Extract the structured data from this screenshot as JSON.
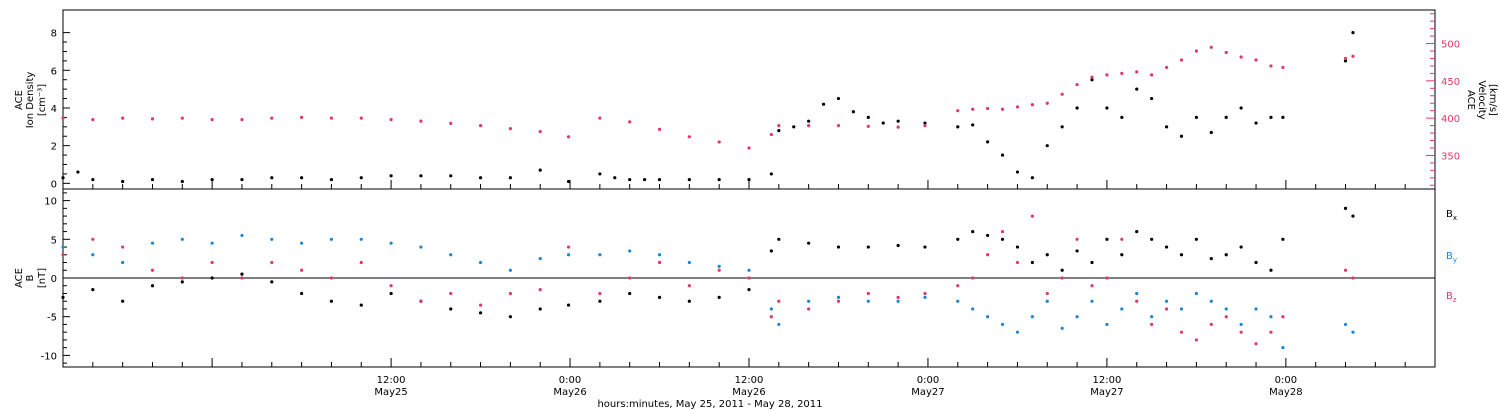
{
  "colors": {
    "black": "#000000",
    "pink": "#e0386a",
    "blue": "#1a86d8"
  },
  "x_axis": {
    "title": "hours:minutes, May 25, 2011 - May 28, 2011",
    "ticks": [
      {
        "h": 12,
        "time": "12:00",
        "day": "May25"
      },
      {
        "h": 24,
        "time": "0:00",
        "day": "May26"
      },
      {
        "h": 36,
        "time": "12:00",
        "day": "May26"
      },
      {
        "h": 48,
        "time": "0:00",
        "day": "May27"
      },
      {
        "h": 60,
        "time": "12:00",
        "day": "May27"
      },
      {
        "h": 72,
        "time": "0:00",
        "day": "May28"
      }
    ],
    "range_hours": [
      -10,
      82
    ]
  },
  "chart_data": [
    {
      "type": "scatter",
      "ylabel_left": [
        "ACE",
        "Ion Density"
      ],
      "ylabel_left_unit": "[cm⁻³]",
      "ylabel_right": [
        "ACE",
        "Velocity"
      ],
      "ylabel_right_unit": "[km/s]",
      "ylim_left": [
        -0.3,
        9.2
      ],
      "yticks_left": [
        "0",
        "2",
        "4",
        "6",
        "8"
      ],
      "ylim_right": [
        305,
        545
      ],
      "yticks_right": [
        "350",
        "400",
        "450",
        "500"
      ],
      "series": [
        {
          "color": "black",
          "axis": "left",
          "x": [
            -10,
            -9,
            -8,
            -6,
            -4,
            -2,
            0,
            2,
            4,
            6,
            8,
            10,
            12,
            14,
            16,
            18,
            20,
            22,
            23.9,
            26,
            27,
            28,
            29,
            30,
            32,
            34,
            36,
            37.5,
            38,
            39,
            40,
            41,
            42,
            43,
            44,
            45,
            46,
            47.8,
            50,
            51,
            52,
            53,
            54,
            55,
            56,
            57,
            58,
            59,
            60,
            61,
            62,
            63,
            64,
            65,
            66,
            67,
            68,
            69,
            70,
            71,
            71.8,
            76,
            76.5
          ],
          "y": [
            0.3,
            0.6,
            0.2,
            0.1,
            0.2,
            0.1,
            0.2,
            0.2,
            0.3,
            0.3,
            0.2,
            0.3,
            0.4,
            0.4,
            0.4,
            0.3,
            0.3,
            0.7,
            0.1,
            0.5,
            0.3,
            0.2,
            0.2,
            0.2,
            0.2,
            0.2,
            0.2,
            0.5,
            2.8,
            3.0,
            3.3,
            4.2,
            4.5,
            3.8,
            3.5,
            3.2,
            3.3,
            3.2,
            3.0,
            3.1,
            2.2,
            1.5,
            0.6,
            0.3,
            2.0,
            3.0,
            4.0,
            5.5,
            4.0,
            3.5,
            5.0,
            4.5,
            3.0,
            2.5,
            3.5,
            2.7,
            3.5,
            4.0,
            3.2,
            3.5,
            3.5,
            6.5,
            8.0
          ]
        },
        {
          "color": "pink",
          "axis": "right",
          "x": [
            -10,
            -8,
            -6,
            -4,
            -2,
            0,
            2,
            4,
            6,
            8,
            10,
            12,
            14,
            16,
            18,
            20,
            22,
            23.9,
            26,
            28,
            30,
            32,
            34,
            36,
            37.5,
            38,
            40,
            42,
            44,
            46,
            47.8,
            50,
            51,
            52,
            53,
            54,
            55,
            56,
            57,
            58,
            59,
            60,
            61,
            62,
            63,
            64,
            65,
            66,
            67,
            68,
            69,
            70,
            71,
            71.8,
            76,
            76.5
          ],
          "y": [
            400,
            398,
            400,
            399,
            400,
            398,
            398,
            400,
            401,
            400,
            400,
            398,
            396,
            393,
            390,
            386,
            382,
            375,
            400,
            395,
            385,
            375,
            368,
            360,
            378,
            390,
            390,
            390,
            389,
            388,
            390,
            410,
            412,
            413,
            412,
            415,
            418,
            420,
            432,
            445,
            455,
            458,
            460,
            462,
            458,
            468,
            478,
            490,
            495,
            488,
            482,
            478,
            470,
            468,
            480,
            483
          ]
        }
      ]
    },
    {
      "type": "scatter",
      "ylabel": [
        "ACE",
        "B"
      ],
      "ylabel_unit": "[nT]",
      "ylim": [
        -11.5,
        11.5
      ],
      "yticks": [
        "-10",
        "-5",
        "0",
        "5",
        "10"
      ],
      "zero_line": true,
      "legend": [
        "Bₓ",
        "Bᵧ",
        "B_z"
      ],
      "legend_labels": [
        {
          "base": "B",
          "sub": "x",
          "color": "black"
        },
        {
          "base": "B",
          "sub": "y",
          "color": "blue"
        },
        {
          "base": "B",
          "sub": "z",
          "color": "pink"
        }
      ],
      "series": [
        {
          "color": "black",
          "x": [
            -10,
            -8,
            -6,
            -4,
            -2,
            0,
            2,
            4,
            6,
            8,
            10,
            12,
            14,
            16,
            18,
            20,
            22,
            23.9,
            26,
            28,
            30,
            32,
            34,
            36,
            37.5,
            38,
            40,
            42,
            44,
            46,
            47.8,
            50,
            51,
            52,
            53,
            54,
            55,
            56,
            57,
            58,
            59,
            60,
            61,
            62,
            63,
            64,
            65,
            66,
            67,
            68,
            69,
            70,
            71,
            71.8,
            76,
            76.5
          ],
          "y": [
            -2.5,
            -1.5,
            -3.0,
            -1.0,
            -0.5,
            0.0,
            0.5,
            -0.5,
            -2.0,
            -3.0,
            -3.5,
            -2.0,
            -3.0,
            -4.0,
            -4.5,
            -5.0,
            -4.0,
            -3.5,
            -3.0,
            -2.0,
            -2.5,
            -3.0,
            -2.5,
            -1.5,
            3.5,
            5.0,
            4.5,
            4.0,
            4.0,
            4.2,
            4.0,
            5.0,
            6.0,
            5.5,
            5.0,
            4.0,
            2.0,
            3.0,
            1.0,
            3.5,
            2.0,
            5.0,
            3.0,
            6.0,
            5.0,
            4.0,
            3.0,
            5.0,
            2.5,
            3.0,
            4.0,
            2.0,
            1.0,
            5.0,
            9.0,
            8.0
          ]
        },
        {
          "color": "blue",
          "x": [
            -10,
            -8,
            -6,
            -4,
            -2,
            0,
            2,
            4,
            6,
            8,
            10,
            12,
            14,
            16,
            18,
            20,
            22,
            23.9,
            26,
            28,
            30,
            32,
            34,
            36,
            37.5,
            38,
            40,
            42,
            44,
            46,
            47.8,
            50,
            51,
            52,
            53,
            54,
            55,
            56,
            57,
            58,
            59,
            60,
            61,
            62,
            63,
            64,
            65,
            66,
            67,
            68,
            69,
            70,
            71,
            71.8,
            76,
            76.5
          ],
          "y": [
            4.0,
            3.0,
            2.0,
            4.5,
            5.0,
            4.5,
            5.5,
            5.0,
            4.5,
            5.0,
            5.0,
            4.5,
            4.0,
            3.0,
            2.0,
            1.0,
            2.5,
            3.0,
            3.0,
            3.5,
            3.0,
            2.0,
            1.5,
            1.0,
            -4.0,
            -6.0,
            -3.0,
            -2.5,
            -3.0,
            -3.0,
            -2.5,
            -3.0,
            -4.0,
            -5.0,
            -6.0,
            -7.0,
            -5.0,
            -3.0,
            -6.5,
            -5.0,
            -3.0,
            -6.0,
            -4.0,
            -2.0,
            -5.0,
            -3.0,
            -4.0,
            -2.0,
            -3.0,
            -4.0,
            -6.0,
            -4.0,
            -5.0,
            -9.0,
            -6.0,
            -7.0
          ]
        },
        {
          "color": "pink",
          "x": [
            -10,
            -8,
            -6,
            -4,
            -2,
            0,
            2,
            4,
            6,
            8,
            10,
            12,
            14,
            16,
            18,
            20,
            22,
            23.9,
            26,
            28,
            30,
            32,
            34,
            36,
            37.5,
            38,
            40,
            42,
            44,
            46,
            47.8,
            50,
            51,
            52,
            53,
            54,
            55,
            56,
            57,
            58,
            59,
            60,
            61,
            62,
            63,
            64,
            65,
            66,
            67,
            68,
            69,
            70,
            71,
            71.8,
            76,
            76.5
          ],
          "y": [
            3.0,
            5.0,
            4.0,
            1.0,
            0.0,
            2.0,
            0.0,
            2.0,
            1.0,
            0.0,
            2.0,
            -1.0,
            -3.0,
            -2.0,
            -3.5,
            -2.0,
            -1.5,
            4.0,
            -2.0,
            0.0,
            2.0,
            -1.0,
            1.0,
            0.0,
            -5.0,
            -3.0,
            -4.0,
            -3.0,
            -2.0,
            -2.5,
            -2.0,
            -1.0,
            0.0,
            3.0,
            6.0,
            2.0,
            8.0,
            -2.0,
            0.0,
            5.0,
            -1.0,
            0.0,
            5.0,
            -3.0,
            -6.0,
            -4.0,
            -7.0,
            -8.0,
            -6.0,
            -5.0,
            -7.0,
            -8.5,
            -7.0,
            -5.0,
            1.0,
            0.0
          ]
        }
      ]
    }
  ]
}
